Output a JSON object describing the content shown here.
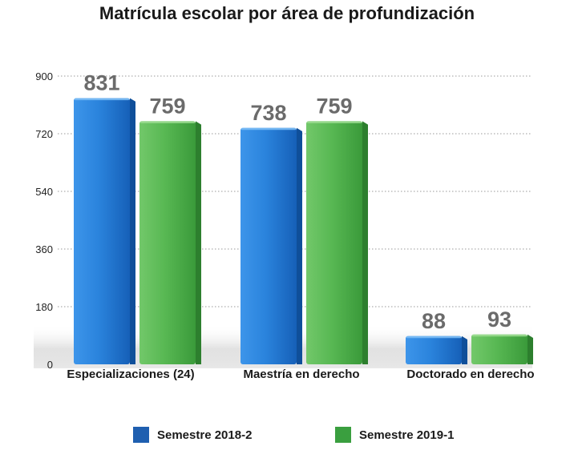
{
  "chart_data": {
    "type": "bar",
    "title": "Matrícula escolar por área de profundización",
    "xlabel": "",
    "ylabel": "",
    "categories": [
      "Especializaciones (24)",
      "Maestría en derecho",
      "Doctorado en derecho"
    ],
    "series": [
      {
        "name": "Semestre 2018-2",
        "values": [
          831,
          738,
          88
        ],
        "color": "#1f78d4"
      },
      {
        "name": "Semestre 2019-1",
        "values": [
          759,
          759,
          93
        ],
        "color": "#4cb04a"
      }
    ],
    "ylim": [
      0,
      900
    ],
    "yticks": [
      0,
      180,
      360,
      540,
      720,
      900
    ],
    "grid": true,
    "data_labels": true,
    "legend_position": "bottom"
  }
}
